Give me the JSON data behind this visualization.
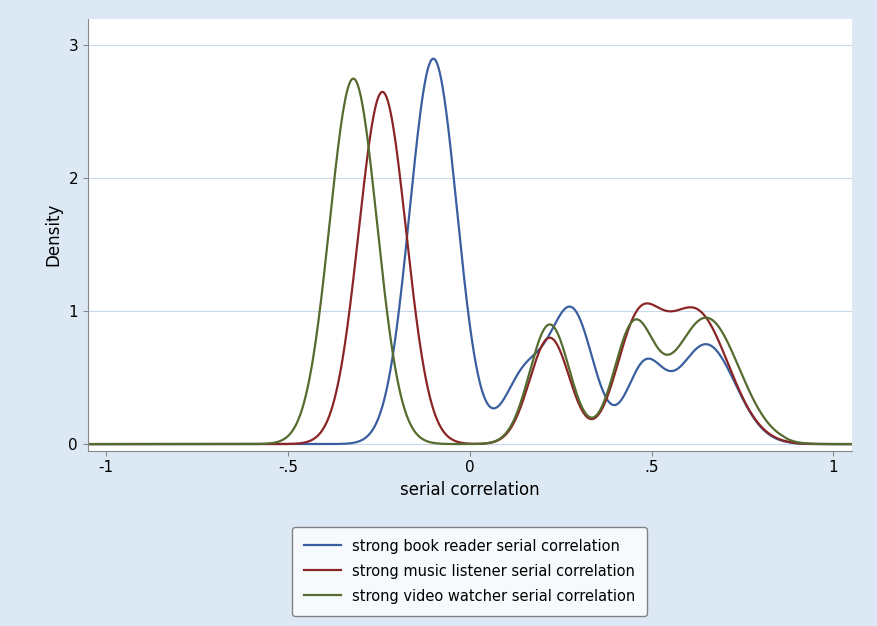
{
  "background_color": "#dce9f5",
  "plot_bg_color": "#ffffff",
  "xlabel": "serial correlation",
  "ylabel": "Density",
  "xlim": [
    -1.05,
    1.05
  ],
  "ylim": [
    -0.05,
    3.2
  ],
  "xticks": [
    -1,
    -0.5,
    0,
    0.5,
    1
  ],
  "xtick_labels": [
    "-1",
    "-.5",
    "0",
    ".5",
    "1"
  ],
  "yticks": [
    0,
    1,
    2,
    3
  ],
  "ytick_labels": [
    "0",
    "1",
    "2",
    "3"
  ],
  "lines": [
    {
      "label": "strong book reader serial correlation",
      "color": "#3a5fa0",
      "linewidth": 1.6
    },
    {
      "label": "strong music listener serial correlation",
      "color": "#8b2525",
      "linewidth": 1.6
    },
    {
      "label": "strong video watcher serial correlation",
      "color": "#556b2f",
      "linewidth": 1.6
    }
  ],
  "legend_bg": "#ffffff",
  "axis_fontsize": 12,
  "tick_fontsize": 11
}
